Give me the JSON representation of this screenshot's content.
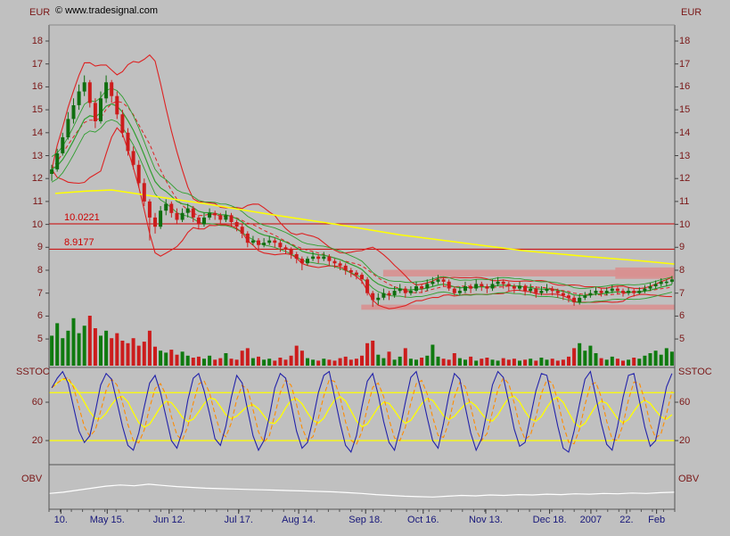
{
  "copyright": "© www.tradesignal.com",
  "colors": {
    "background": "#c0c0c0",
    "axis_text": "#7a1717",
    "date_text": "#17177a",
    "border": "#555555",
    "candle_up": "#0f6e0f",
    "candle_down": "#cc1c1c",
    "volume_up": "#0f7a0f",
    "volume_down": "#cc1c1c",
    "bollinger": "#dd2222",
    "ma_mid_dashed": "#dd2222",
    "ma_green": "#2f9e2f",
    "ma_yellow": "#ffff00",
    "hline": "#cc0000",
    "zone": "#d89090",
    "stoch_k": "#2222aa",
    "stoch_d": "#ff8c00",
    "stoch_slow": "#ffff00",
    "stoch_level": "#ffff00",
    "obv": "#ffffff"
  },
  "chart_data": {
    "type": "candlestick",
    "x_ticks": [
      {
        "label": "10.",
        "pos": 0.019
      },
      {
        "label": "May 15.",
        "pos": 0.093
      },
      {
        "label": "Jun 12.",
        "pos": 0.192
      },
      {
        "label": "Jul 17.",
        "pos": 0.303
      },
      {
        "label": "Aug 14.",
        "pos": 0.399
      },
      {
        "label": "Sep 18.",
        "pos": 0.506
      },
      {
        "label": "Oct 16.",
        "pos": 0.598
      },
      {
        "label": "Nov 13.",
        "pos": 0.698
      },
      {
        "label": "Dec 18.",
        "pos": 0.8
      },
      {
        "label": "2007",
        "pos": 0.866
      },
      {
        "label": "22.",
        "pos": 0.923
      },
      {
        "label": "Feb",
        "pos": 0.971
      }
    ],
    "panels": [
      {
        "name": "price",
        "ylabel": "EUR",
        "ylabel_right": "EUR",
        "yticks": [
          18,
          17,
          16,
          15,
          14,
          13,
          12,
          11,
          10,
          9,
          8,
          7,
          6,
          5
        ],
        "ylim": [
          4.8,
          18.7
        ],
        "hlines": [
          {
            "label": "10.0221",
            "value": 10.0221
          },
          {
            "label": "8.9177",
            "value": 8.9177
          }
        ],
        "zones": [
          {
            "x1": 0.534,
            "x2": 1.0,
            "y1": 7.73,
            "y2": 8.02
          },
          {
            "x1": 0.905,
            "x2": 1.0,
            "y1": 7.62,
            "y2": 8.12
          },
          {
            "x1": 0.499,
            "x2": 1.0,
            "y1": 6.28,
            "y2": 6.5
          }
        ],
        "ma_yellow": [
          [
            0.01,
            11.35
          ],
          [
            0.06,
            11.45
          ],
          [
            0.1,
            11.5
          ],
          [
            0.15,
            11.3
          ],
          [
            0.25,
            10.9
          ],
          [
            0.35,
            10.45
          ],
          [
            0.46,
            10.0
          ],
          [
            0.56,
            9.55
          ],
          [
            0.66,
            9.2
          ],
          [
            0.76,
            8.85
          ],
          [
            0.86,
            8.6
          ],
          [
            0.95,
            8.4
          ],
          [
            1.0,
            8.27
          ]
        ],
        "ohlc": [
          [
            12.2,
            12.6,
            11.9,
            12.4
          ],
          [
            12.4,
            13.3,
            12.3,
            13.1
          ],
          [
            13.1,
            14.0,
            13.0,
            13.8
          ],
          [
            13.8,
            14.9,
            13.7,
            14.6
          ],
          [
            14.6,
            15.5,
            14.4,
            15.2
          ],
          [
            15.2,
            16.1,
            15.0,
            15.8
          ],
          [
            15.8,
            16.5,
            15.6,
            16.2
          ],
          [
            16.2,
            16.3,
            15.1,
            15.3
          ],
          [
            15.3,
            15.5,
            14.2,
            14.5
          ],
          [
            14.5,
            15.8,
            14.4,
            15.5
          ],
          [
            15.5,
            16.5,
            15.3,
            16.2
          ],
          [
            16.2,
            16.3,
            15.3,
            15.6
          ],
          [
            15.6,
            15.8,
            14.6,
            14.8
          ],
          [
            14.8,
            15.0,
            13.8,
            14.0
          ],
          [
            14.0,
            14.2,
            13.0,
            13.2
          ],
          [
            13.2,
            13.4,
            12.4,
            12.6
          ],
          [
            12.6,
            12.8,
            11.6,
            11.8
          ],
          [
            11.8,
            12.0,
            10.8,
            11.0
          ],
          [
            11.0,
            11.1,
            9.3,
            10.3
          ],
          [
            10.3,
            10.5,
            9.6,
            9.9
          ],
          [
            9.9,
            10.8,
            9.8,
            10.6
          ],
          [
            10.6,
            11.1,
            10.4,
            10.9
          ],
          [
            10.9,
            11.0,
            10.3,
            10.5
          ],
          [
            10.5,
            10.7,
            10.0,
            10.2
          ],
          [
            10.2,
            10.7,
            10.1,
            10.5
          ],
          [
            10.5,
            10.9,
            10.3,
            10.7
          ],
          [
            10.7,
            10.8,
            10.1,
            10.3
          ],
          [
            10.3,
            10.4,
            9.8,
            10.0
          ],
          [
            10.0,
            10.5,
            9.9,
            10.3
          ],
          [
            10.3,
            10.7,
            10.2,
            10.5
          ],
          [
            10.5,
            10.6,
            10.2,
            10.4
          ],
          [
            10.4,
            10.5,
            10.0,
            10.2
          ],
          [
            10.2,
            10.6,
            10.1,
            10.4
          ],
          [
            10.4,
            10.5,
            9.9,
            10.1
          ],
          [
            10.1,
            10.2,
            9.7,
            9.9
          ],
          [
            9.9,
            10.0,
            9.4,
            9.6
          ],
          [
            9.6,
            9.7,
            9.0,
            9.2
          ],
          [
            9.2,
            9.5,
            9.1,
            9.3
          ],
          [
            9.3,
            9.4,
            8.9,
            9.1
          ],
          [
            9.1,
            9.4,
            9.0,
            9.2
          ],
          [
            9.2,
            9.5,
            9.1,
            9.3
          ],
          [
            9.3,
            9.4,
            9.0,
            9.2
          ],
          [
            9.2,
            9.3,
            8.8,
            9.0
          ],
          [
            9.0,
            9.1,
            8.7,
            8.9
          ],
          [
            8.9,
            9.0,
            8.5,
            8.7
          ],
          [
            8.7,
            8.8,
            8.3,
            8.5
          ],
          [
            8.5,
            8.6,
            8.0,
            8.3
          ],
          [
            8.3,
            8.6,
            8.2,
            8.5
          ],
          [
            8.5,
            8.8,
            8.4,
            8.6
          ],
          [
            8.6,
            8.7,
            8.3,
            8.5
          ],
          [
            8.5,
            8.8,
            8.4,
            8.6
          ],
          [
            8.6,
            8.7,
            8.2,
            8.4
          ],
          [
            8.4,
            8.5,
            8.1,
            8.3
          ],
          [
            8.3,
            8.4,
            8.0,
            8.2
          ],
          [
            8.2,
            8.3,
            7.8,
            8.0
          ],
          [
            8.0,
            8.1,
            7.7,
            7.9
          ],
          [
            7.9,
            8.0,
            7.6,
            7.8
          ],
          [
            7.8,
            7.9,
            7.4,
            7.6
          ],
          [
            7.6,
            7.7,
            6.9,
            7.0
          ],
          [
            7.0,
            7.1,
            6.4,
            6.7
          ],
          [
            6.7,
            7.0,
            6.5,
            6.8
          ],
          [
            6.8,
            7.2,
            6.7,
            7.0
          ],
          [
            7.0,
            7.1,
            6.7,
            6.9
          ],
          [
            6.9,
            7.3,
            6.8,
            7.1
          ],
          [
            7.1,
            7.4,
            7.0,
            7.2
          ],
          [
            7.2,
            7.3,
            6.8,
            7.0
          ],
          [
            7.0,
            7.3,
            6.9,
            7.1
          ],
          [
            7.1,
            7.5,
            7.0,
            7.3
          ],
          [
            7.3,
            7.4,
            7.0,
            7.2
          ],
          [
            7.2,
            7.6,
            7.1,
            7.4
          ],
          [
            7.4,
            7.7,
            7.3,
            7.5
          ],
          [
            7.5,
            7.8,
            7.4,
            7.6
          ],
          [
            7.6,
            7.7,
            7.3,
            7.5
          ],
          [
            7.5,
            7.6,
            7.1,
            7.2
          ],
          [
            7.2,
            7.3,
            6.9,
            7.0
          ],
          [
            7.0,
            7.3,
            6.9,
            7.1
          ],
          [
            7.1,
            7.5,
            7.0,
            7.3
          ],
          [
            7.3,
            7.4,
            7.0,
            7.2
          ],
          [
            7.2,
            7.6,
            7.1,
            7.4
          ],
          [
            7.4,
            7.5,
            7.1,
            7.3
          ],
          [
            7.3,
            7.4,
            7.0,
            7.2
          ],
          [
            7.2,
            7.6,
            7.1,
            7.4
          ],
          [
            7.4,
            7.7,
            7.3,
            7.5
          ],
          [
            7.5,
            7.6,
            7.2,
            7.4
          ],
          [
            7.4,
            7.5,
            7.1,
            7.3
          ],
          [
            7.3,
            7.4,
            7.0,
            7.2
          ],
          [
            7.2,
            7.5,
            7.1,
            7.3
          ],
          [
            7.3,
            7.4,
            6.9,
            7.1
          ],
          [
            7.1,
            7.4,
            7.0,
            7.2
          ],
          [
            7.2,
            7.3,
            6.8,
            7.0
          ],
          [
            7.0,
            7.3,
            6.9,
            7.1
          ],
          [
            7.1,
            7.4,
            7.0,
            7.2
          ],
          [
            7.2,
            7.3,
            6.9,
            7.1
          ],
          [
            7.1,
            7.2,
            6.8,
            7.0
          ],
          [
            7.0,
            7.1,
            6.7,
            6.9
          ],
          [
            6.9,
            7.0,
            6.6,
            6.8
          ],
          [
            6.8,
            6.9,
            6.45,
            6.6
          ],
          [
            6.6,
            6.95,
            6.5,
            6.8
          ],
          [
            6.8,
            7.05,
            6.7,
            6.9
          ],
          [
            6.9,
            7.15,
            6.8,
            7.0
          ],
          [
            7.0,
            7.25,
            6.9,
            7.1
          ],
          [
            7.1,
            7.2,
            6.85,
            7.0
          ],
          [
            7.0,
            7.25,
            6.9,
            7.1
          ],
          [
            7.1,
            7.35,
            7.0,
            7.2
          ],
          [
            7.2,
            7.3,
            6.95,
            7.1
          ],
          [
            7.1,
            7.2,
            6.85,
            7.0
          ],
          [
            7.0,
            7.25,
            6.9,
            7.1
          ],
          [
            7.1,
            7.2,
            6.85,
            7.0
          ],
          [
            7.0,
            7.25,
            6.95,
            7.1
          ],
          [
            7.1,
            7.35,
            7.0,
            7.2
          ],
          [
            7.2,
            7.45,
            7.1,
            7.3
          ],
          [
            7.3,
            7.55,
            7.2,
            7.4
          ],
          [
            7.4,
            7.65,
            7.3,
            7.5
          ],
          [
            7.5,
            7.6,
            7.3,
            7.5
          ],
          [
            7.5,
            7.75,
            7.4,
            7.6
          ]
        ],
        "volume": [
          60,
          85,
          55,
          70,
          95,
          65,
          80,
          100,
          75,
          60,
          70,
          55,
          65,
          50,
          45,
          55,
          40,
          48,
          70,
          38,
          30,
          26,
          32,
          22,
          28,
          20,
          16,
          18,
          14,
          20,
          12,
          15,
          25,
          14,
          12,
          30,
          35,
          15,
          18,
          12,
          14,
          10,
          16,
          12,
          20,
          40,
          30,
          15,
          12,
          10,
          14,
          12,
          10,
          15,
          18,
          12,
          14,
          20,
          45,
          50,
          22,
          15,
          28,
          12,
          18,
          35,
          14,
          12,
          16,
          20,
          42,
          18,
          14,
          12,
          25,
          15,
          12,
          18,
          10,
          14,
          16,
          12,
          10,
          15,
          12,
          14,
          10,
          12,
          14,
          10,
          16,
          12,
          14,
          10,
          12,
          18,
          35,
          45,
          30,
          40,
          25,
          15,
          12,
          18,
          14,
          10,
          12,
          16,
          14,
          20,
          25,
          30,
          22,
          35,
          28
        ]
      },
      {
        "name": "stochastic",
        "label": "SSTOC",
        "label_right": "SSTOC",
        "yticks": [
          60,
          20
        ],
        "levels": [
          70,
          20
        ],
        "ylim": [
          0,
          90
        ],
        "k": [
          75,
          85,
          92,
          80,
          55,
          30,
          18,
          25,
          50,
          78,
          90,
          84,
          60,
          35,
          15,
          10,
          28,
          55,
          80,
          88,
          70,
          45,
          20,
          12,
          30,
          62,
          85,
          90,
          72,
          48,
          22,
          15,
          35,
          65,
          88,
          80,
          52,
          25,
          10,
          20,
          45,
          75,
          90,
          85,
          58,
          30,
          12,
          18,
          42,
          70,
          88,
          92,
          65,
          38,
          15,
          8,
          25,
          55,
          82,
          90,
          68,
          40,
          18,
          10,
          32,
          60,
          86,
          92,
          70,
          44,
          20,
          12,
          38,
          68,
          90,
          84,
          55,
          28,
          10,
          22,
          50,
          78,
          92,
          86,
          60,
          32,
          14,
          18,
          45,
          72,
          90,
          88,
          62,
          35,
          12,
          8,
          30,
          58,
          84,
          92,
          66,
          38,
          16,
          10,
          35,
          65,
          88,
          90,
          62,
          34,
          14,
          20,
          48,
          76,
          90
        ]
      },
      {
        "name": "obv",
        "label": "OBV",
        "label_right": "OBV",
        "values": [
          55,
          58,
          63,
          68,
          73,
          76,
          74,
          78,
          75,
          72,
          70,
          68,
          67,
          66,
          65,
          64,
          63,
          62,
          61,
          60,
          59,
          57,
          55,
          52,
          50,
          48,
          47,
          46,
          48,
          50,
          49,
          51,
          50,
          52,
          51,
          53,
          52,
          54,
          53,
          55,
          54,
          56,
          55,
          57,
          58
        ]
      }
    ]
  }
}
